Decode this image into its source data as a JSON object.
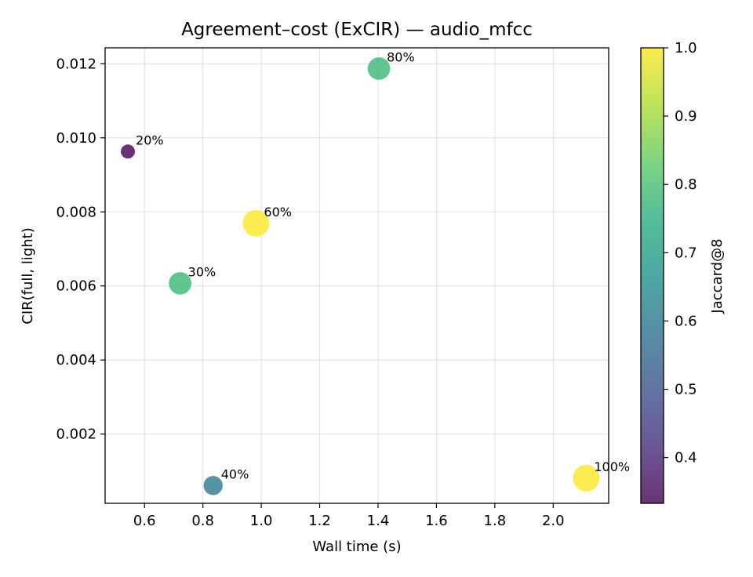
{
  "chart_data": {
    "type": "scatter",
    "title": "Agreement–cost (ExCIR) — audio_mfcc",
    "xlabel": "Wall time (s)",
    "ylabel": "CIR(full, light)",
    "xlim": [
      0.465,
      2.19
    ],
    "ylim": [
      0.00013,
      0.01243
    ],
    "xticks": [
      "0.6",
      "0.8",
      "1.0",
      "1.2",
      "1.4",
      "1.6",
      "1.8",
      "2.0"
    ],
    "yticks": [
      "0.002",
      "0.004",
      "0.006",
      "0.008",
      "0.010",
      "0.012"
    ],
    "grid": true,
    "points": [
      {
        "label": "20%",
        "x": 0.543,
        "y": 0.00963,
        "jaccard": 0.333
      },
      {
        "label": "30%",
        "x": 0.722,
        "y": 0.00607,
        "jaccard": 0.778
      },
      {
        "label": "40%",
        "x": 0.835,
        "y": 0.00061,
        "jaccard": 0.6
      },
      {
        "label": "60%",
        "x": 0.982,
        "y": 0.00769,
        "jaccard": 1.0
      },
      {
        "label": "80%",
        "x": 1.403,
        "y": 0.01187,
        "jaccard": 0.778
      },
      {
        "label": "100%",
        "x": 2.113,
        "y": 0.00081,
        "jaccard": 1.0
      }
    ],
    "colorbar": {
      "label": "Jaccard@8",
      "colormap": "viridis",
      "range": [
        0.333,
        1.0
      ],
      "ticks": [
        "0.4",
        "0.5",
        "0.6",
        "0.7",
        "0.8",
        "0.9",
        "1.0"
      ]
    }
  }
}
